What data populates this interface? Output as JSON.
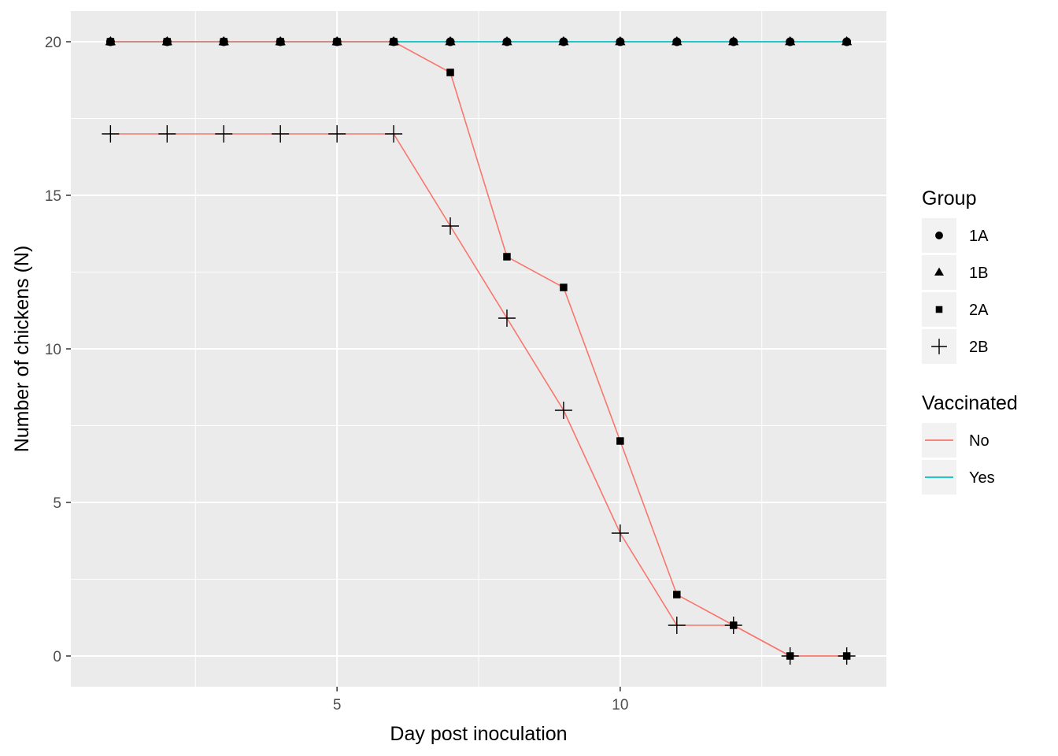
{
  "chart_data": {
    "type": "line",
    "title": "",
    "xlabel": "Day post inoculation",
    "ylabel": "Number of chickens (N)",
    "xlim": [
      0.3,
      14.7
    ],
    "ylim": [
      -1,
      21
    ],
    "x_ticks": [
      5,
      10
    ],
    "y_ticks": [
      0,
      5,
      10,
      15,
      20
    ],
    "grid": true,
    "legend_placement": "right",
    "colors": {
      "No": "#F8766D",
      "Yes": "#00BFC4",
      "panel": "#EBEBEB",
      "grid": "#FFFFFF"
    },
    "series": [
      {
        "group": "1A",
        "vaccinated": "Yes",
        "shape": "circle",
        "x": [
          1,
          2,
          3,
          4,
          5,
          6,
          7,
          8,
          9,
          10,
          11,
          12,
          13,
          14
        ],
        "y": [
          20,
          20,
          20,
          20,
          20,
          20,
          20,
          20,
          20,
          20,
          20,
          20,
          20,
          20
        ]
      },
      {
        "group": "1B",
        "vaccinated": "Yes",
        "shape": "triangle",
        "x": [
          1,
          2,
          3,
          4,
          5,
          6,
          7,
          8,
          9,
          10,
          11,
          12,
          13,
          14
        ],
        "y": [
          20,
          20,
          20,
          20,
          20,
          20,
          20,
          20,
          20,
          20,
          20,
          20,
          20,
          20
        ]
      },
      {
        "group": "2A",
        "vaccinated": "No",
        "shape": "square",
        "x": [
          1,
          2,
          3,
          4,
          5,
          6,
          7,
          8,
          9,
          10,
          11,
          12,
          13,
          14
        ],
        "y": [
          20,
          20,
          20,
          20,
          20,
          20,
          19,
          13,
          12,
          7,
          2,
          1,
          0,
          0
        ]
      },
      {
        "group": "2B",
        "vaccinated": "No",
        "shape": "plus",
        "x": [
          1,
          2,
          3,
          4,
          5,
          6,
          7,
          8,
          9,
          10,
          11,
          12,
          13,
          14
        ],
        "y": [
          17,
          17,
          17,
          17,
          17,
          17,
          14,
          11,
          8,
          4,
          1,
          1,
          0,
          0
        ]
      }
    ],
    "legends": [
      {
        "title": "Group",
        "items": [
          {
            "label": "1A",
            "shape": "circle"
          },
          {
            "label": "1B",
            "shape": "triangle"
          },
          {
            "label": "2A",
            "shape": "square"
          },
          {
            "label": "2B",
            "shape": "plus"
          }
        ]
      },
      {
        "title": "Vaccinated",
        "items": [
          {
            "label": "No",
            "color": "#F8766D"
          },
          {
            "label": "Yes",
            "color": "#00BFC4"
          }
        ]
      }
    ]
  }
}
